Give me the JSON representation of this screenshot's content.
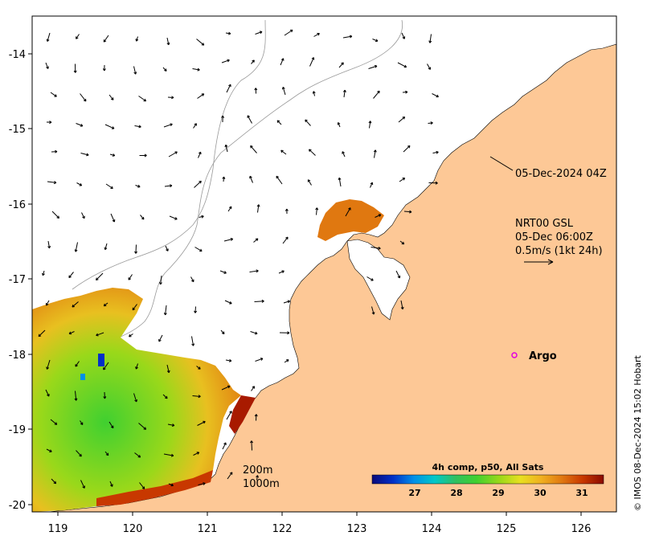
{
  "map": {
    "x_ticks": [
      "119",
      "120",
      "121",
      "122",
      "123",
      "124",
      "125",
      "126"
    ],
    "y_ticks": [
      "-14",
      "-15",
      "-16",
      "-17",
      "-18",
      "-19",
      "-20"
    ],
    "annotation_time": "05-Dec-2024 04Z",
    "current_label": {
      "line1": "NRT00 GSL",
      "line2": "05-Dec 06:00Z",
      "line3": "0.5m/s (1kt 24h)"
    },
    "argo_label": "Argo",
    "depth_contours": [
      "200m",
      "1000m"
    ],
    "credit": "© IMOS 08-Dec-2024 15:02 Hobart"
  },
  "colorbar": {
    "title": "4h comp, p50, All Sats",
    "ticks": [
      "27",
      "28",
      "29",
      "30",
      "31"
    ],
    "colors": [
      "#0a0a7a",
      "#0030c8",
      "#0090e8",
      "#00c8c8",
      "#30c060",
      "#40d030",
      "#9ad81a",
      "#e8e020",
      "#f0b020",
      "#e07810",
      "#c83800",
      "#8a0a00"
    ]
  },
  "colors": {
    "land": "#fdc896",
    "ocean": "#ffffff",
    "argo": "#e000e0"
  }
}
